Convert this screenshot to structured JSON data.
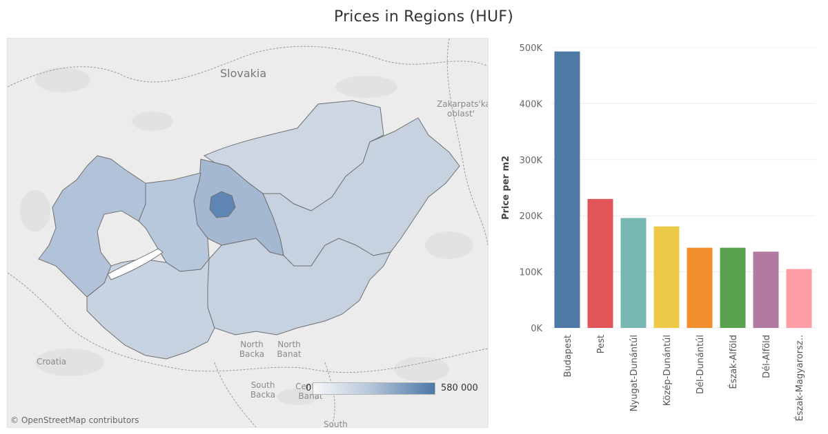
{
  "title": "Prices in Regions (HUF)",
  "map": {
    "labels": {
      "slovakia": "Slovakia",
      "zakarpats": "Zakarpats'ka oblast'",
      "croatia": "Croatia",
      "north_backa": "North Backa",
      "north_banat": "North Banat",
      "south_backa": "South Backa",
      "central_banat": "Central Banat",
      "south": "South"
    },
    "attribution": "© OpenStreetMap contributors",
    "legend": {
      "min": "0",
      "max": "580 000",
      "color_low": "#f7f8fa",
      "color_high": "#4c78a8"
    },
    "region_colors": {
      "budapest": "#5f86b4",
      "pest": "#a4b8d1",
      "nyugat": "#b2c3d9",
      "kozep": "#b8c8dc",
      "del_dunantul": "#c8d3e1",
      "eszak_alfold": "#c6d2e0",
      "del_alfold": "#c7d2e0",
      "eszak_magyar": "#cdd7e4"
    }
  },
  "chart_data": {
    "type": "bar",
    "categories": [
      "Budapest",
      "Pest",
      "Nyugat-Dunántúl",
      "Közép-Dunántúl",
      "Dél-Dunántúl",
      "Észak-Alföld",
      "Dél-Alföld",
      "Észak-Magyarorsz.."
    ],
    "values": [
      493000,
      230000,
      196000,
      181000,
      143000,
      143000,
      136000,
      105000
    ],
    "colors": [
      "#4e79a7",
      "#e15759",
      "#76b7b2",
      "#edc948",
      "#f28e2b",
      "#59a14f",
      "#b07aa1",
      "#ff9da7"
    ],
    "ylabel": "Price per m2",
    "ylim": [
      0,
      500000
    ],
    "yticks": [
      0,
      100000,
      200000,
      300000,
      400000,
      500000
    ],
    "ytick_labels": [
      "0K",
      "100K",
      "200K",
      "300K",
      "400K",
      "500K"
    ],
    "grid": true
  }
}
